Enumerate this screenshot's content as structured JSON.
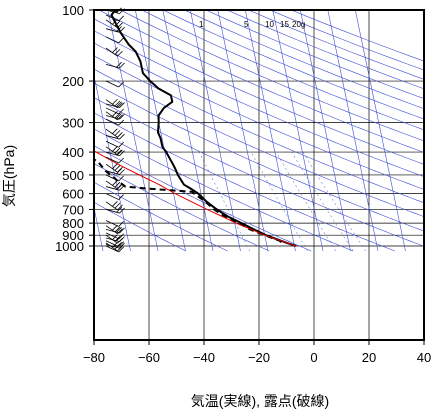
{
  "chart_data": {
    "type": "line",
    "title": "",
    "xlabel": "気温(実線), 露点(破線)",
    "ylabel": "気圧(hPa)",
    "xlim": [
      -80,
      40
    ],
    "ylim": [
      1050,
      100
    ],
    "yscale": "log",
    "grid": true,
    "x_ticks": [
      -80,
      -60,
      -40,
      -20,
      0,
      20,
      40
    ],
    "x_tick_labels": [
      "−80",
      "−60",
      "−40",
      "−20",
      "0",
      "20",
      "40"
    ],
    "y_ticks": [
      100,
      200,
      300,
      400,
      500,
      600,
      700,
      800,
      900,
      1000
    ],
    "y_tick_labels": [
      "100",
      "200",
      "300",
      "400",
      "500",
      "600",
      "700",
      "800",
      "900",
      "1000"
    ],
    "mixing_ratio_labels": [
      "1",
      "5",
      "10",
      "15",
      "20g"
    ],
    "mixing_ratio_values": [
      1,
      5,
      10,
      15,
      20
    ],
    "series": [
      {
        "role": "temperature",
        "style": "solid",
        "color": "#000000",
        "points": [
          [
            1000,
            0.6
          ],
          [
            970,
            -2.5
          ],
          [
            950,
            -4.5
          ],
          [
            925,
            -7
          ],
          [
            900,
            -9.5
          ],
          [
            850,
            -13.5
          ],
          [
            800,
            -17.5
          ],
          [
            750,
            -22
          ],
          [
            700,
            -25.5
          ],
          [
            650,
            -28.5
          ],
          [
            600,
            -31
          ],
          [
            570,
            -33.5
          ],
          [
            550,
            -35.5
          ],
          [
            500,
            -37
          ],
          [
            470,
            -37.5
          ],
          [
            450,
            -38
          ],
          [
            400,
            -39.5
          ],
          [
            380,
            -40.5
          ],
          [
            350,
            -40.5
          ],
          [
            330,
            -41
          ],
          [
            300,
            -40
          ],
          [
            280,
            -39.5
          ],
          [
            260,
            -37
          ],
          [
            245,
            -33.5
          ],
          [
            230,
            -33.5
          ],
          [
            215,
            -37.5
          ],
          [
            200,
            -40
          ],
          [
            185,
            -42
          ],
          [
            165,
            -42
          ],
          [
            150,
            -43
          ],
          [
            140,
            -45
          ],
          [
            125,
            -47
          ],
          [
            115,
            -48
          ],
          [
            110,
            -48.5
          ],
          [
            105,
            -49
          ],
          [
            102,
            -48
          ],
          [
            100,
            -46
          ]
        ]
      },
      {
        "role": "dewpoint",
        "style": "dashed",
        "color": "#000000",
        "points": [
          [
            965,
            -4.5
          ],
          [
            950,
            -5
          ],
          [
            925,
            -7.5
          ],
          [
            900,
            -10
          ],
          [
            850,
            -15
          ],
          [
            800,
            -18.5
          ],
          [
            750,
            -23
          ],
          [
            700,
            -26.5
          ],
          [
            650,
            -29
          ],
          [
            600,
            -32.5
          ],
          [
            590,
            -33
          ],
          [
            585,
            -37
          ],
          [
            570,
            -50
          ],
          [
            560,
            -57
          ],
          [
            520,
            -60
          ],
          [
            480,
            -63
          ],
          [
            440,
            -65
          ],
          [
            420,
            -67.5
          ],
          [
            405,
            -70
          ],
          [
            400,
            -73
          ],
          [
            395,
            -80
          ]
        ]
      },
      {
        "role": "parcel",
        "style": "solid",
        "color": "#e00000",
        "points": [
          [
            1000,
            0.6
          ],
          [
            950,
            -4.5
          ],
          [
            900,
            -10
          ],
          [
            850,
            -14.5
          ],
          [
            800,
            -19.5
          ],
          [
            750,
            -24
          ],
          [
            700,
            -29
          ],
          [
            650,
            -34
          ],
          [
            600,
            -39.5
          ],
          [
            550,
            -44.5
          ],
          [
            500,
            -51
          ],
          [
            450,
            -58
          ],
          [
            400,
            -65
          ],
          [
            350,
            -73
          ],
          [
            310,
            -80
          ]
        ]
      }
    ],
    "wind_barb_pressures": [
      1000,
      985,
      970,
      950,
      925,
      900,
      880,
      850,
      820,
      780,
      700,
      650,
      600,
      560,
      530,
      500,
      480,
      450,
      420,
      400,
      380,
      360,
      340,
      320,
      290,
      280,
      270,
      260,
      250,
      240,
      200,
      170,
      145,
      130,
      120,
      110,
      105,
      100
    ]
  }
}
